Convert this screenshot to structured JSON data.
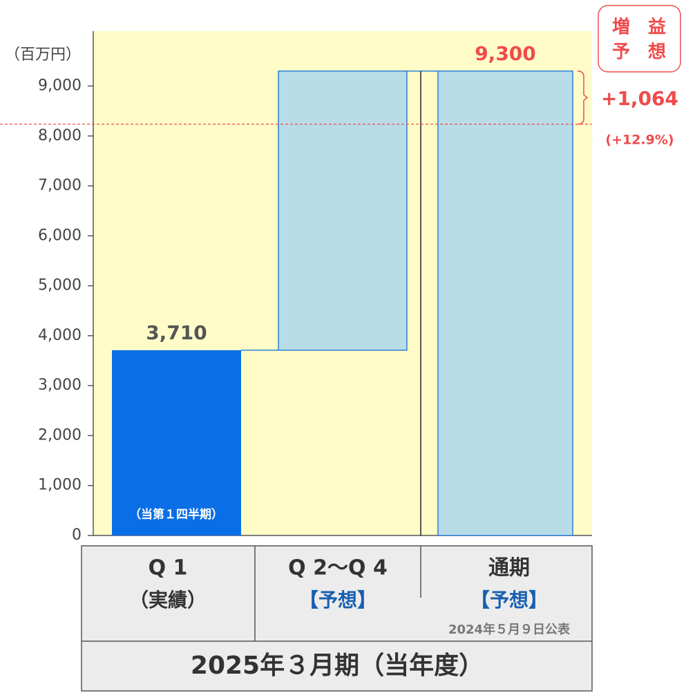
{
  "chart_data": {
    "type": "waterfall",
    "y_unit": "（百万円）",
    "categories": [
      "Q 1",
      "Q 2～Q 4",
      "通期"
    ],
    "sublabels": [
      "（実績）",
      "【予想】",
      "【予想】"
    ],
    "note": "2024年５月９日公表",
    "period": "2025年３月期（当年度）",
    "values": [
      3710,
      5590,
      9300
    ],
    "value_labels": [
      "3,710",
      null,
      "9,300"
    ],
    "colors": [
      "#0a6fe6",
      "#b8dce8",
      "#b8dce8"
    ],
    "inner_label": "（当第１四半期）",
    "reference_line": 8236,
    "change_label": "+1,064",
    "change_pct_label": "(+12.9%)",
    "badge": [
      "増　益",
      "予　想"
    ],
    "ylim": [
      0,
      10100
    ],
    "yticks": [
      0,
      {
        "value": 1000,
        "label": "1,000"
      },
      {
        "value": 2000,
        "label": "2,000"
      },
      {
        "value": 3000,
        "label": "3,000"
      },
      {
        "value": 4000,
        "label": "4,000"
      },
      {
        "value": 5000,
        "label": "5,000"
      },
      {
        "value": 6000,
        "label": "6,000"
      },
      {
        "value": 7000,
        "label": "7,000"
      },
      {
        "value": 8000,
        "label": "8,000"
      },
      {
        "value": 9000,
        "label": "9,000"
      }
    ]
  }
}
